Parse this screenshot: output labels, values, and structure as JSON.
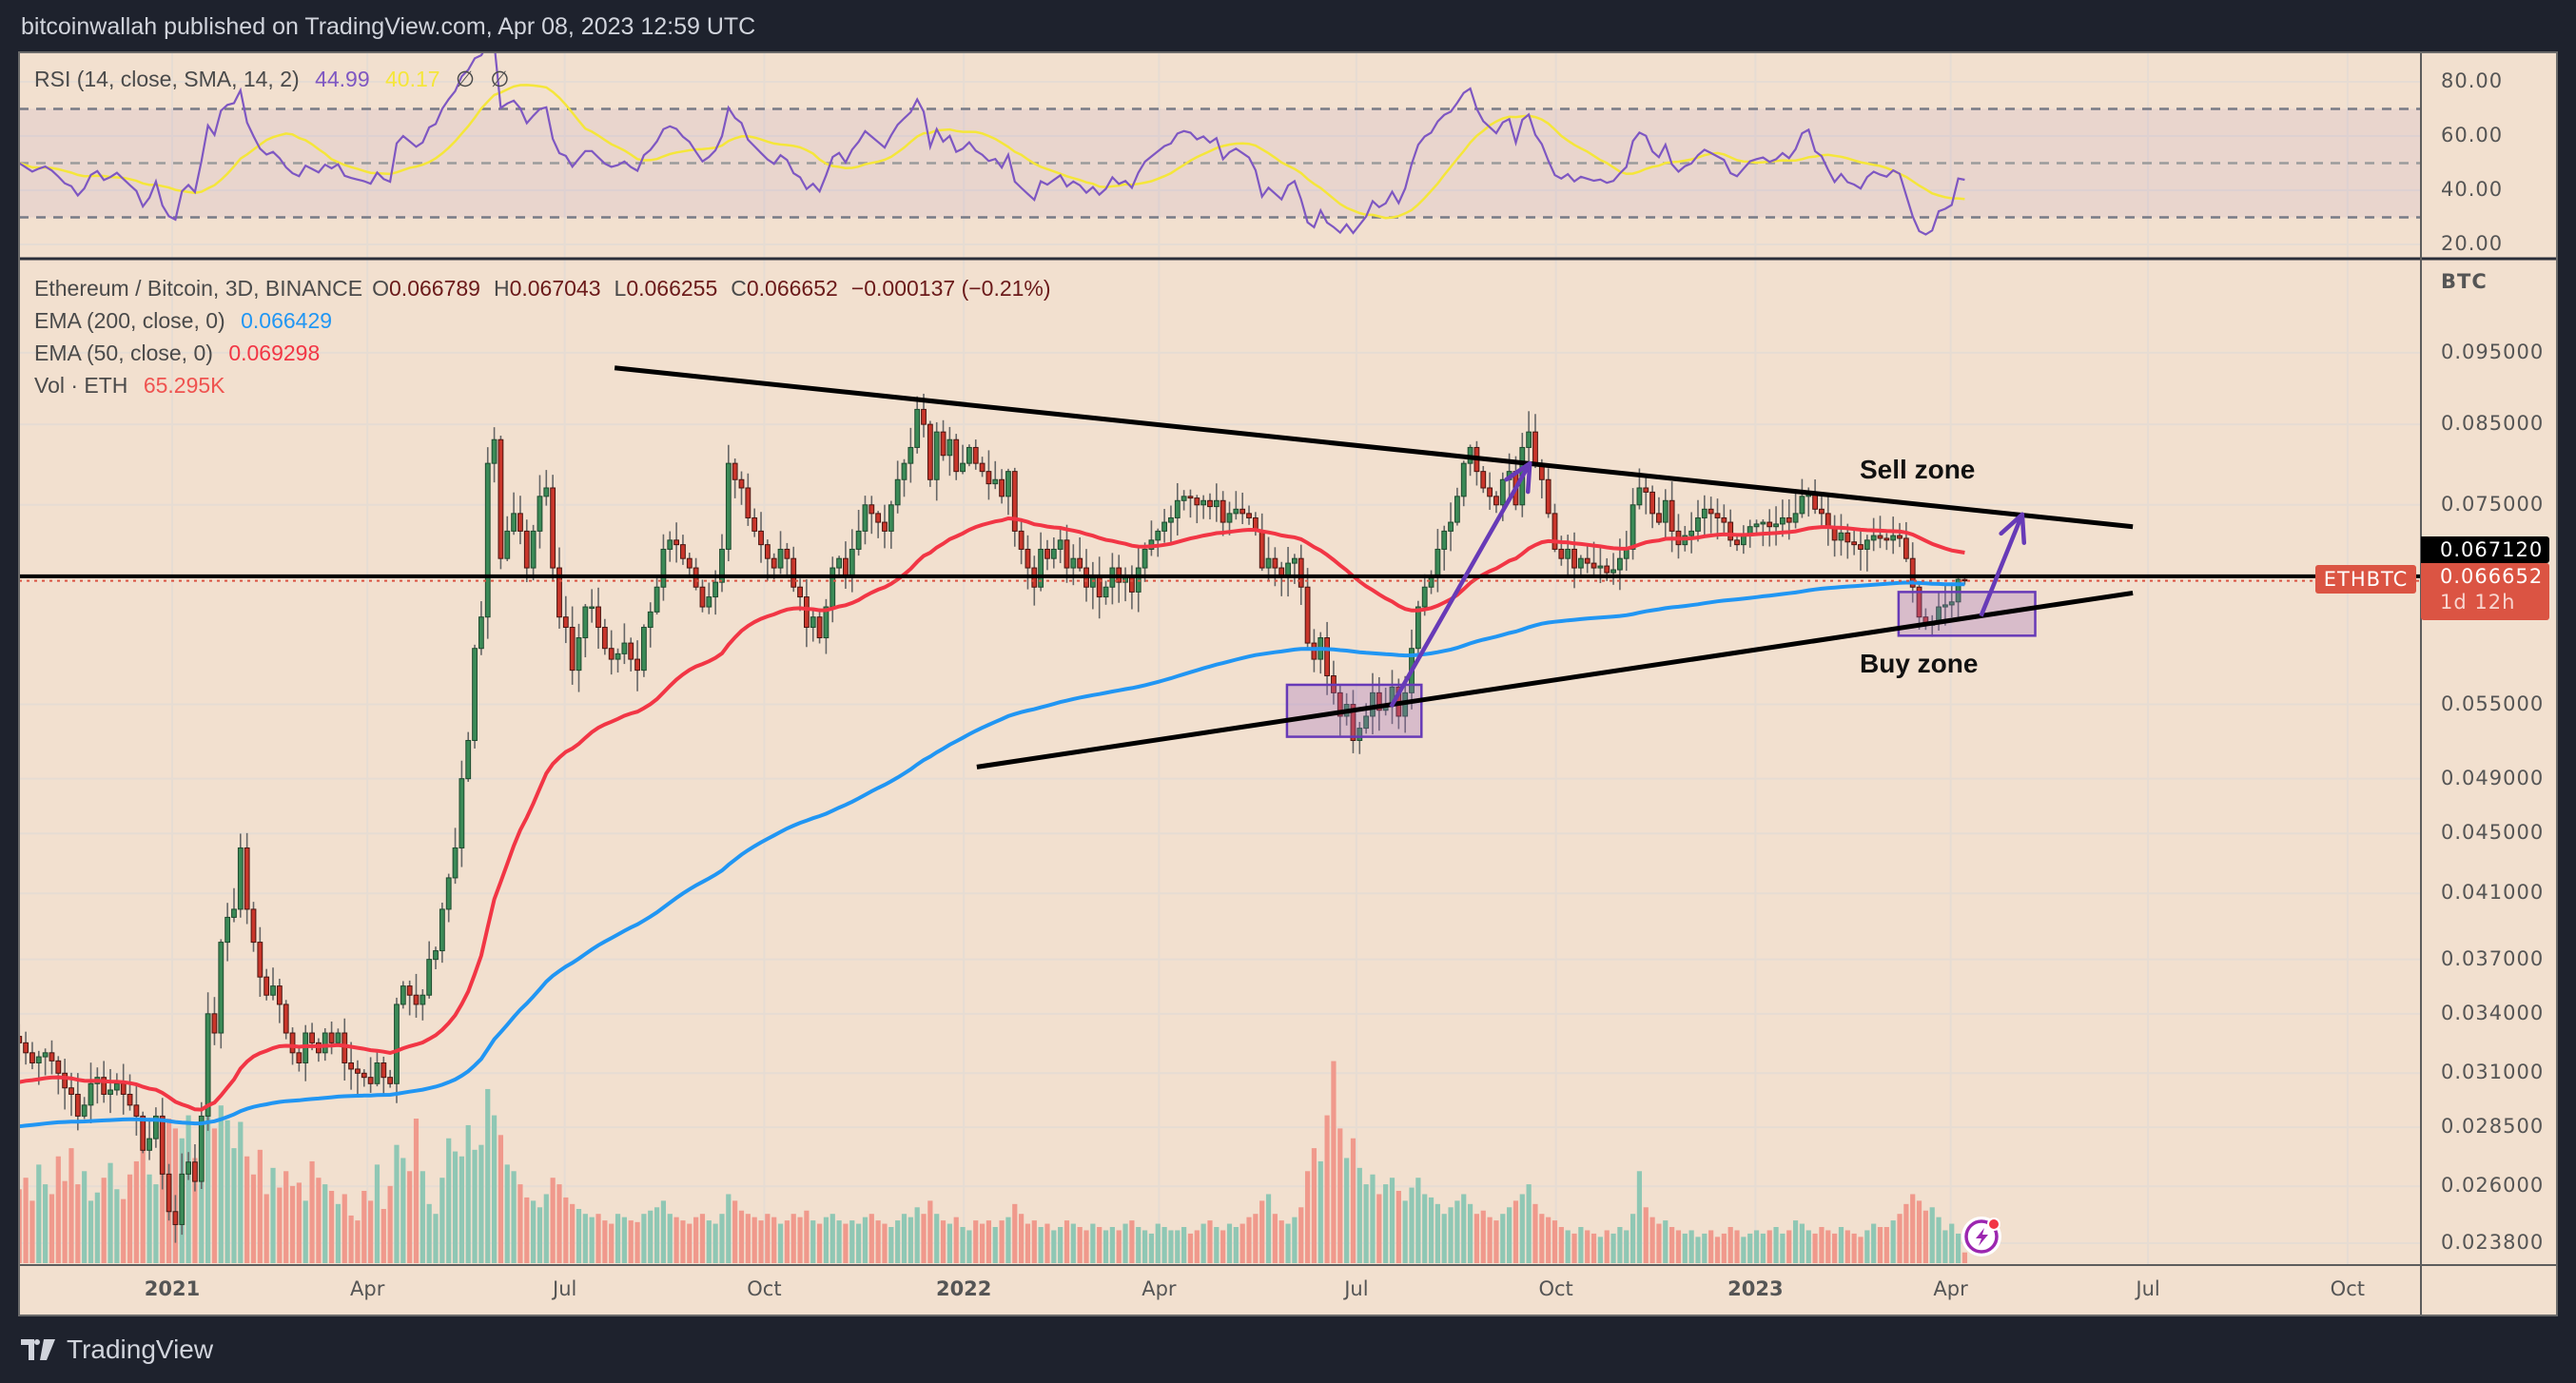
{
  "header": {
    "title": "bitcoinwallah published on TradingView.com, Apr 08, 2023 12:59 UTC"
  },
  "rsi_legend": {
    "label": "RSI (14, close, SMA, 14, 2)",
    "rsi_value": "44.99",
    "sma_value": "40.17",
    "extra1": "∅",
    "extra2": "∅"
  },
  "legend": {
    "symbol": "Ethereum / Bitcoin, 3D, BINANCE",
    "o_key": "O",
    "o": "0.066789",
    "h_key": "H",
    "h": "0.067043",
    "l_key": "L",
    "l": "0.066255",
    "c_key": "C",
    "c": "0.066652",
    "change": "−0.000137 (−0.21%)",
    "ema200_label": "EMA (200, close, 0)",
    "ema200_value": "0.066429",
    "ema50_label": "EMA (50, close, 0)",
    "ema50_value": "0.069298",
    "vol_label": "Vol · ETH",
    "vol_value": "65.295K"
  },
  "price_axis": {
    "unit": "BTC",
    "ticks": [
      "0.095000",
      "0.085000",
      "0.075000",
      "0.055000",
      "0.049000",
      "0.045000",
      "0.041000",
      "0.037000",
      "0.034000",
      "0.031000",
      "0.028500",
      "0.026000",
      "0.023800"
    ]
  },
  "rsi_axis": {
    "ticks": [
      "80.00",
      "60.00",
      "40.00",
      "20.00"
    ]
  },
  "time_axis": [
    {
      "label": "2021",
      "date": "2021-01-01",
      "bold": true
    },
    {
      "label": "Apr",
      "date": "2021-04-01"
    },
    {
      "label": "Jul",
      "date": "2021-07-01"
    },
    {
      "label": "Oct",
      "date": "2021-10-01"
    },
    {
      "label": "2022",
      "date": "2022-01-01",
      "bold": true
    },
    {
      "label": "Apr",
      "date": "2022-04-01"
    },
    {
      "label": "Jul",
      "date": "2022-07-01"
    },
    {
      "label": "Oct",
      "date": "2022-10-01"
    },
    {
      "label": "2023",
      "date": "2023-01-01",
      "bold": true
    },
    {
      "label": "Apr",
      "date": "2023-04-01"
    },
    {
      "label": "Jul",
      "date": "2023-07-01"
    },
    {
      "label": "Oct",
      "date": "2023-10-01"
    }
  ],
  "price_tags": {
    "line_price": "0.067120",
    "symbol_tag": "ETHBTC",
    "last_price": "0.066652",
    "countdown": "1d 12h"
  },
  "annotations": {
    "sell_zone": "Sell zone",
    "buy_zone": "Buy zone"
  },
  "footer": {
    "brand": "TradingView"
  },
  "colors": {
    "background": "#f2e0cf",
    "up": "#3b8a57",
    "down": "#c9362b",
    "vol_up": "#8fc7b4",
    "vol_down": "#f0998c",
    "ema200": "#2196f3",
    "ema50": "#f23645",
    "rsi": "#7e57c2",
    "rsi_sma": "#f5e63a",
    "drawing": "#673ab7",
    "tag": "#db5443"
  },
  "chart_data": {
    "type": "candlestick",
    "symbol": "ETHBTC",
    "interval": "3D",
    "y_scale": "log",
    "ylim": [
      0.0225,
      0.1
    ],
    "grid": true,
    "last_candle": {
      "date": "2023-04-06",
      "open": 0.066789,
      "high": 0.067043,
      "low": 0.066255,
      "close": 0.066652
    },
    "closes": [
      0.0325,
      0.032,
      0.0315,
      0.0318,
      0.032,
      0.0316,
      0.031,
      0.0303,
      0.03,
      0.029,
      0.0295,
      0.0305,
      0.0308,
      0.03,
      0.0302,
      0.0305,
      0.03,
      0.0295,
      0.029,
      0.0275,
      0.028,
      0.029,
      0.0265,
      0.025,
      0.0245,
      0.0265,
      0.027,
      0.0262,
      0.029,
      0.034,
      0.033,
      0.038,
      0.0395,
      0.04,
      0.044,
      0.04,
      0.038,
      0.036,
      0.035,
      0.0355,
      0.0345,
      0.033,
      0.032,
      0.0315,
      0.033,
      0.0325,
      0.032,
      0.033,
      0.0325,
      0.033,
      0.0315,
      0.0312,
      0.031,
      0.0308,
      0.0305,
      0.0315,
      0.0308,
      0.0305,
      0.0345,
      0.0355,
      0.035,
      0.0345,
      0.035,
      0.037,
      0.0375,
      0.04,
      0.042,
      0.044,
      0.049,
      0.052,
      0.06,
      0.063,
      0.08,
      0.083,
      0.069,
      0.072,
      0.074,
      0.072,
      0.068,
      0.072,
      0.076,
      0.077,
      0.068,
      0.063,
      0.062,
      0.058,
      0.061,
      0.064,
      0.064,
      0.062,
      0.06,
      0.059,
      0.0595,
      0.0605,
      0.059,
      0.058,
      0.062,
      0.0635,
      0.066,
      0.07,
      0.071,
      0.0705,
      0.069,
      0.068,
      0.066,
      0.064,
      0.065,
      0.0665,
      0.07,
      0.08,
      0.078,
      0.077,
      0.0735,
      0.072,
      0.0705,
      0.069,
      0.068,
      0.07,
      0.069,
      0.066,
      0.065,
      0.062,
      0.063,
      0.061,
      0.064,
      0.068,
      0.069,
      0.067,
      0.07,
      0.072,
      0.075,
      0.074,
      0.073,
      0.072,
      0.075,
      0.078,
      0.08,
      0.082,
      0.087,
      0.085,
      0.078,
      0.084,
      0.081,
      0.083,
      0.079,
      0.08,
      0.082,
      0.08,
      0.079,
      0.0775,
      0.078,
      0.076,
      0.079,
      0.072,
      0.07,
      0.068,
      0.066,
      0.07,
      0.069,
      0.07,
      0.071,
      0.068,
      0.069,
      0.068,
      0.066,
      0.067,
      0.065,
      0.066,
      0.068,
      0.0665,
      0.067,
      0.0655,
      0.068,
      0.07,
      0.071,
      0.072,
      0.073,
      0.0735,
      0.0755,
      0.076,
      0.0758,
      0.075,
      0.0755,
      0.0748,
      0.0755,
      0.073,
      0.074,
      0.0745,
      0.074,
      0.0735,
      0.072,
      0.068,
      0.069,
      0.068,
      0.067,
      0.0685,
      0.069,
      0.066,
      0.0605,
      0.059,
      0.061,
      0.0575,
      0.056,
      0.054,
      0.055,
      0.052,
      0.053,
      0.054,
      0.056,
      0.0545,
      0.055,
      0.0565,
      0.054,
      0.056,
      0.06,
      0.064,
      0.066,
      0.067,
      0.07,
      0.072,
      0.073,
      0.076,
      0.08,
      0.082,
      0.079,
      0.077,
      0.076,
      0.075,
      0.078,
      0.079,
      0.075,
      0.082,
      0.084,
      0.08,
      0.078,
      0.074,
      0.07,
      0.069,
      0.07,
      0.068,
      0.069,
      0.0685,
      0.068,
      0.0682,
      0.0675,
      0.0678,
      0.069,
      0.07,
      0.075,
      0.077,
      0.0765,
      0.074,
      0.073,
      0.0755,
      0.072,
      0.0705,
      0.0715,
      0.072,
      0.0735,
      0.0745,
      0.074,
      0.0735,
      0.073,
      0.071,
      0.0705,
      0.0715,
      0.0725,
      0.0728,
      0.073,
      0.0725,
      0.0728,
      0.0735,
      0.073,
      0.074,
      0.076,
      0.0765,
      0.0745,
      0.074,
      0.0725,
      0.071,
      0.0718,
      0.0708,
      0.0705,
      0.07,
      0.071,
      0.0715,
      0.0712,
      0.071,
      0.0715,
      0.0712,
      0.069,
      0.066,
      0.063,
      0.0622,
      0.0625,
      0.064,
      0.0642,
      0.0645,
      0.0668,
      0.066652
    ],
    "volumes_k": [
      450,
      520,
      380,
      600,
      480,
      420,
      650,
      500,
      700,
      480,
      560,
      380,
      430,
      520,
      610,
      450,
      390,
      540,
      620,
      780,
      540,
      480,
      700,
      880,
      820,
      760,
      900,
      640,
      780,
      1030,
      820,
      960,
      870,
      700,
      860,
      650,
      540,
      690,
      420,
      580,
      460,
      560,
      470,
      490,
      380,
      620,
      520,
      480,
      440,
      360,
      420,
      290,
      260,
      440,
      380,
      600,
      330,
      470,
      720,
      640,
      560,
      880,
      560,
      360,
      300,
      520,
      760,
      680,
      650,
      840,
      690,
      720,
      1060,
      900,
      780,
      600,
      560,
      480,
      400,
      380,
      340,
      420,
      520,
      480,
      400,
      360,
      330,
      300,
      280,
      300,
      260,
      240,
      300,
      280,
      260,
      250,
      300,
      320,
      340,
      380,
      300,
      280,
      260,
      240,
      280,
      300,
      260,
      240,
      300,
      420,
      380,
      320,
      300,
      280,
      260,
      300,
      280,
      240,
      260,
      300,
      280,
      320,
      260,
      240,
      280,
      300,
      260,
      240,
      260,
      240,
      280,
      300,
      260,
      240,
      220,
      260,
      300,
      280,
      340,
      300,
      380,
      300,
      260,
      240,
      280,
      220,
      200,
      260,
      240,
      260,
      220,
      260,
      280,
      360,
      300,
      240,
      260,
      220,
      240,
      200,
      220,
      260,
      240,
      220,
      200,
      240,
      220,
      200,
      220,
      200,
      240,
      260,
      220,
      200,
      180,
      240,
      220,
      200,
      200,
      220,
      180,
      200,
      240,
      260,
      220,
      200,
      240,
      220,
      240,
      280,
      300,
      380,
      420,
      300,
      260,
      240,
      280,
      340,
      560,
      700,
      620,
      900,
      1230,
      820,
      640,
      760,
      580,
      480,
      540,
      420,
      480,
      520,
      440,
      380,
      460,
      520,
      420,
      400,
      360,
      300,
      340,
      380,
      420,
      360,
      300,
      320,
      280,
      260,
      300,
      340,
      380,
      420,
      480,
      360,
      300,
      280,
      260,
      220,
      200,
      180,
      220,
      200,
      180,
      160,
      200,
      180,
      220,
      200,
      300,
      560,
      340,
      280,
      240,
      260,
      220,
      200,
      180,
      200,
      160,
      180,
      200,
      160,
      180,
      220,
      200,
      160,
      180,
      200,
      180,
      200,
      220,
      180,
      200,
      260,
      240,
      200,
      180,
      220,
      200,
      180,
      220,
      200,
      180,
      160,
      200,
      240,
      220,
      220,
      260,
      300,
      360,
      420,
      380,
      320,
      340,
      280,
      200,
      240,
      180,
      65.295
    ],
    "indicators": {
      "ema200_last": 0.066429,
      "ema50_last": 0.069298,
      "rsi_last": 44.99,
      "rsi_sma_last": 40.17,
      "rsi_bands": [
        70,
        50,
        30
      ]
    },
    "horizontal_line": 0.06712,
    "trendlines": [
      {
        "from": {
          "date": "2021-07-24",
          "price": 0.0928
        },
        "to": {
          "date": "2023-06-24",
          "price": 0.0725
        }
      },
      {
        "from": {
          "date": "2022-01-07",
          "price": 0.0499
        },
        "to": {
          "date": "2023-06-24",
          "price": 0.0654
        }
      }
    ],
    "boxes": [
      {
        "from": {
          "date": "2022-05-30",
          "price": 0.0567
        },
        "to": {
          "date": "2022-07-31",
          "price": 0.0523
        }
      },
      {
        "from": {
          "date": "2023-03-08",
          "price": 0.0655
        },
        "to": {
          "date": "2023-05-10",
          "price": 0.0612
        }
      }
    ],
    "arrows": [
      {
        "from": {
          "date": "2022-07-17",
          "price": 0.0548
        },
        "to": {
          "date": "2022-09-19",
          "price": 0.08
        }
      },
      {
        "from": {
          "date": "2023-04-15",
          "price": 0.0631
        },
        "to": {
          "date": "2023-05-04",
          "price": 0.0739
        }
      }
    ]
  }
}
